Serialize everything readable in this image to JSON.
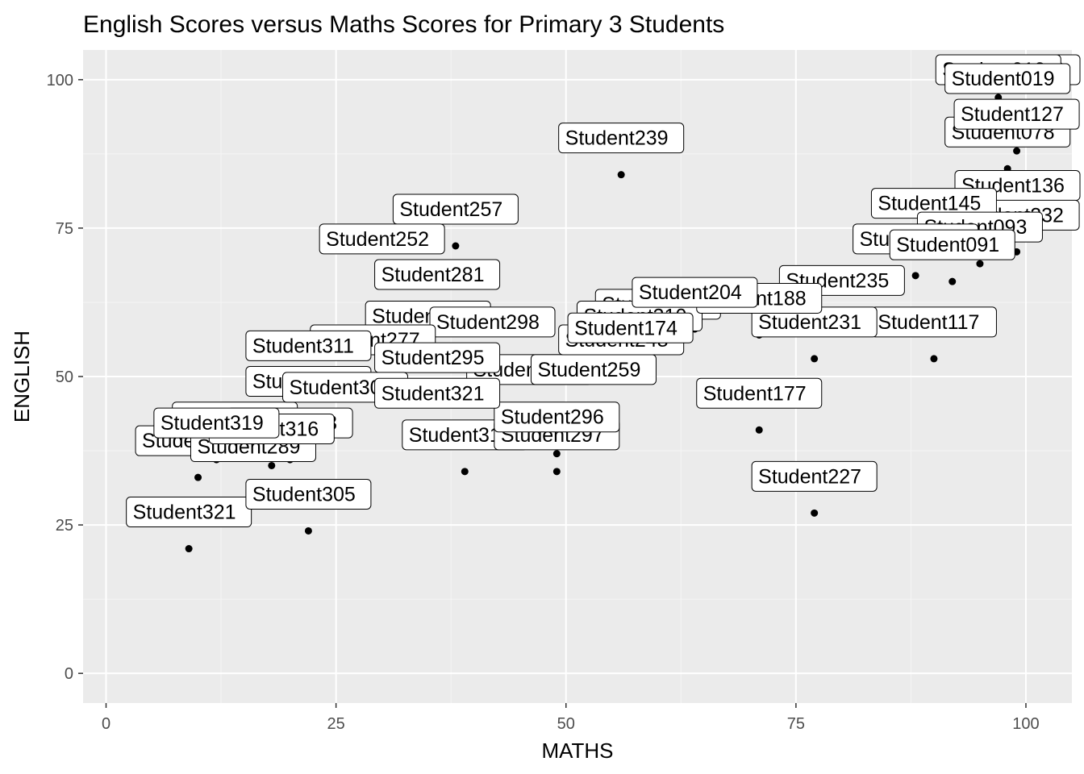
{
  "chart_data": {
    "type": "scatter",
    "title": "English Scores versus Maths Scores for Primary 3 Students",
    "xlabel": "MATHS",
    "ylabel": "ENGLISH",
    "xlim": [
      -2.5,
      105
    ],
    "ylim": [
      -5,
      105
    ],
    "x_ticks": [
      0,
      25,
      50,
      75,
      100
    ],
    "y_ticks": [
      0,
      25,
      50,
      75,
      100
    ],
    "grid": true,
    "legend": "none",
    "colors": {
      "panel": "#ebebeb",
      "grid_major": "#ffffff",
      "grid_minor": "#f5f5f5",
      "point": "#000000",
      "tick_text": "#4d4d4d",
      "tick_mark": "#333333"
    },
    "points": [
      {
        "label": "Student321",
        "x": 9,
        "y": 21
      },
      {
        "label": "Student305",
        "x": 22,
        "y": 24
      },
      {
        "label": "Student318",
        "x": 10,
        "y": 33
      },
      {
        "label": "Student289",
        "x": 16,
        "y": 32
      },
      {
        "label": "Student312",
        "x": 14,
        "y": 37
      },
      {
        "label": "Student313",
        "x": 20,
        "y": 36
      },
      {
        "label": "Student316",
        "x": 18,
        "y": 35
      },
      {
        "label": "Student319",
        "x": 12,
        "y": 36
      },
      {
        "label": "Student314",
        "x": 39,
        "y": 34
      },
      {
        "label": "Student297",
        "x": 49,
        "y": 34
      },
      {
        "label": "Student296",
        "x": 49,
        "y": 37
      },
      {
        "label": "Student253",
        "x": 46,
        "y": 45
      },
      {
        "label": "Student259",
        "x": 53,
        "y": 45
      },
      {
        "label": "Student227",
        "x": 77,
        "y": 27
      },
      {
        "label": "Student177",
        "x": 71,
        "y": 41
      },
      {
        "label": "Student117",
        "x": 90,
        "y": 53
      },
      {
        "label": "Student231",
        "x": 77,
        "y": 53
      },
      {
        "label": "Student235",
        "x": 80,
        "y": 60
      },
      {
        "label": "Student239",
        "x": 56,
        "y": 84
      },
      {
        "label": "Student257",
        "x": 38,
        "y": 72
      },
      {
        "label": "Student252",
        "x": 30,
        "y": 67
      },
      {
        "label": "Student281",
        "x": 36,
        "y": 61
      },
      {
        "label": "Student276",
        "x": 35,
        "y": 54
      },
      {
        "label": "Student298",
        "x": 42,
        "y": 53
      },
      {
        "label": "Student277",
        "x": 29,
        "y": 50
      },
      {
        "label": "Student295",
        "x": 36,
        "y": 47
      },
      {
        "label": "Student311",
        "x": 22,
        "y": 49
      },
      {
        "label": "Student308",
        "x": 22,
        "y": 43
      },
      {
        "label": "Student301",
        "x": 26,
        "y": 42
      },
      {
        "label": "Student321",
        "x": 36,
        "y": 41
      },
      {
        "label": "Student322",
        "x": 60,
        "y": 56
      },
      {
        "label": "Student310",
        "x": 58,
        "y": 54
      },
      {
        "label": "Student248",
        "x": 56,
        "y": 50
      },
      {
        "label": "Student174",
        "x": 57,
        "y": 52
      },
      {
        "label": "Student188",
        "x": 71,
        "y": 57
      },
      {
        "label": "Student204",
        "x": 64,
        "y": 58
      },
      {
        "label": "Student036",
        "x": 100,
        "y": 100
      },
      {
        "label": "Student012",
        "x": 97,
        "y": 97
      },
      {
        "label": "Student078",
        "x": 98,
        "y": 85
      },
      {
        "label": "Student136",
        "x": 100,
        "y": 76
      },
      {
        "label": "Student232",
        "x": 99,
        "y": 71
      },
      {
        "label": "Student145",
        "x": 90,
        "y": 73
      },
      {
        "label": "Student093",
        "x": 95,
        "y": 69
      },
      {
        "label": "Student106",
        "x": 88,
        "y": 67
      },
      {
        "label": "Student091",
        "x": 92,
        "y": 66
      },
      {
        "label": "Student127",
        "x": 99,
        "y": 88
      },
      {
        "label": "Student019",
        "x": 98,
        "y": 94
      }
    ]
  }
}
